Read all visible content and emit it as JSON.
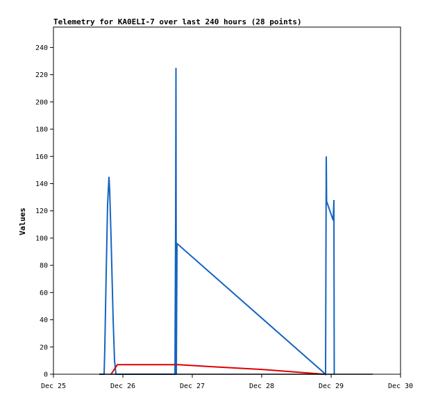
{
  "chart_data": {
    "type": "line",
    "title": "Telemetry for KA0ELI-7 over last 240 hours (28 points)",
    "xlabel": "",
    "ylabel": "Values",
    "x_unit": "days (Dec)",
    "xlim": [
      25,
      30
    ],
    "ylim": [
      0,
      255
    ],
    "x_ticks": [
      {
        "value": 25,
        "label": "Dec 25"
      },
      {
        "value": 26,
        "label": "Dec 26"
      },
      {
        "value": 27,
        "label": "Dec 27"
      },
      {
        "value": 28,
        "label": "Dec 28"
      },
      {
        "value": 29,
        "label": "Dec 29"
      },
      {
        "value": 30,
        "label": "Dec 30"
      }
    ],
    "y_ticks": [
      0,
      20,
      40,
      60,
      80,
      100,
      120,
      140,
      160,
      180,
      200,
      220,
      240
    ],
    "grid": false,
    "colors": {
      "blue": "#1464c0",
      "red": "#dd0000",
      "black": "#000000"
    },
    "series": [
      {
        "color": "#1464c0",
        "points": [
          [
            25.66,
            0
          ],
          [
            25.73,
            0
          ],
          [
            25.74,
            20
          ],
          [
            25.76,
            75
          ],
          [
            25.78,
            125
          ],
          [
            25.8,
            145
          ],
          [
            25.81,
            135
          ],
          [
            25.83,
            100
          ],
          [
            25.86,
            40
          ],
          [
            25.88,
            10
          ],
          [
            25.9,
            0
          ],
          [
            26.75,
            0
          ],
          [
            26.76,
            112
          ],
          [
            26.765,
            225
          ],
          [
            26.77,
            0
          ],
          [
            26.78,
            96
          ],
          [
            28.92,
            0
          ],
          [
            28.93,
            160
          ],
          [
            28.935,
            127
          ],
          [
            29.03,
            113
          ],
          [
            29.04,
            128
          ],
          [
            29.045,
            0
          ]
        ]
      },
      {
        "color": "#dd0000",
        "points": [
          [
            25.83,
            0
          ],
          [
            25.92,
            7
          ],
          [
            26.8,
            7
          ],
          [
            27.3,
            5.5
          ],
          [
            28.0,
            3.5
          ],
          [
            28.9,
            0
          ]
        ]
      },
      {
        "color": "#000000",
        "points": [
          [
            25.66,
            0
          ],
          [
            29.6,
            0
          ]
        ]
      }
    ]
  }
}
